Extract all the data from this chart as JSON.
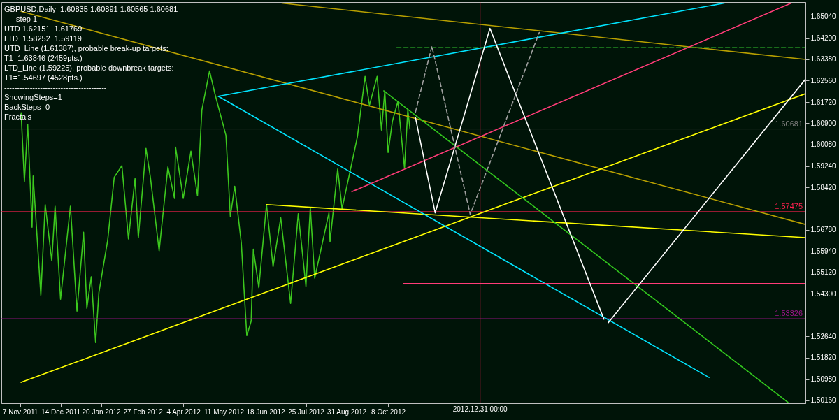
{
  "chart_data": {
    "type": "line",
    "title": "GBPUSD,Daily  1.60835 1.60891 1.60565 1.60681",
    "annotations": [
      "---  step 1  ---------------------",
      "UTD 1.62151  1.61769",
      "LTD  1.58252  1.59119",
      "UTD_Line (1.61387), probable break-up targets:",
      "T1=1.63846 (2459pts.)",
      "LTD_Line (1.59225), probable downbreak targets:",
      "T1=1.54697 (4528pts.)",
      "----------------------------------------",
      "ShowingSteps=1",
      "BackSteps=0",
      "Fractals"
    ],
    "xlim": [
      "2011-10-21",
      "2013-10-24"
    ],
    "xticks": [
      {
        "value": "2011-11-07",
        "label": "7 Nov 2011"
      },
      {
        "value": "2011-12-14",
        "label": "14 Dec 2011"
      },
      {
        "value": "2012-01-20",
        "label": "20 Jan 2012"
      },
      {
        "value": "2012-02-27",
        "label": "27 Feb 2012"
      },
      {
        "value": "2012-04-04",
        "label": "4 Apr 2012"
      },
      {
        "value": "2012-05-11",
        "label": "11 May 2012"
      },
      {
        "value": "2012-06-18",
        "label": "18 Jun 2012"
      },
      {
        "value": "2012-07-25",
        "label": "25 Jul 2012"
      },
      {
        "value": "2012-08-31",
        "label": "31 Aug 2012"
      },
      {
        "value": "2012-10-08",
        "label": "8 Oct 2012"
      }
    ],
    "ylim": [
      1.5005,
      1.656
    ],
    "yticks": [
      {
        "value": 1.6504,
        "label": "1.65040"
      },
      {
        "value": 1.642,
        "label": "1.64200"
      },
      {
        "value": 1.6338,
        "label": "1.63380"
      },
      {
        "value": 1.6256,
        "label": "1.62560"
      },
      {
        "value": 1.6172,
        "label": "1.61720"
      },
      {
        "value": 1.609,
        "label": "1.60900"
      },
      {
        "value": 1.6008,
        "label": "1.60080"
      },
      {
        "value": 1.5924,
        "label": "1.59240"
      },
      {
        "value": 1.5842,
        "label": "1.58420"
      },
      {
        "value": 1.5678,
        "label": "1.56780"
      },
      {
        "value": 1.5594,
        "label": "1.55940"
      },
      {
        "value": 1.5512,
        "label": "1.55120"
      },
      {
        "value": 1.543,
        "label": "1.54300"
      },
      {
        "value": 1.5264,
        "label": "1.52640"
      },
      {
        "value": 1.5182,
        "label": "1.51820"
      },
      {
        "value": 1.5098,
        "label": "1.50980"
      },
      {
        "value": 1.5016,
        "label": "1.50160"
      }
    ],
    "line_style": "solid",
    "series": [
      {
        "color": "#3cc81e",
        "x": [
          "2011-11-08",
          "2011-11-11",
          "2011-11-14",
          "2011-11-18",
          "2011-11-19",
          "2011-11-26",
          "2011-11-30",
          "2011-12-06",
          "2011-12-09",
          "2011-12-14",
          "2011-12-23",
          "2011-12-29",
          "2012-01-04",
          "2012-01-07",
          "2012-01-11",
          "2012-01-15",
          "2012-01-18",
          "2012-01-26",
          "2012-02-01",
          "2012-02-08",
          "2012-02-14",
          "2012-02-20",
          "2012-02-23",
          "2012-03-01",
          "2012-03-05",
          "2012-03-13",
          "2012-03-21",
          "2012-03-27",
          "2012-03-28",
          "2012-04-04",
          "2012-04-11",
          "2012-04-17",
          "2012-04-21",
          "2012-04-28",
          "2012-05-03",
          "2012-05-13",
          "2012-05-17",
          "2012-05-21",
          "2012-05-27",
          "2012-06-01",
          "2012-06-05",
          "2012-06-07",
          "2012-06-12",
          "2012-06-19",
          "2012-06-25",
          "2012-07-02",
          "2012-07-11",
          "2012-07-18",
          "2012-07-25",
          "2012-07-29",
          "2012-08-02",
          "2012-08-15",
          "2012-08-16",
          "2012-08-23",
          "2012-08-27",
          "2012-09-10",
          "2012-09-17",
          "2012-09-21",
          "2012-09-28",
          "2012-10-02",
          "2012-10-05",
          "2012-10-08",
          "2012-10-12",
          "2012-10-17",
          "2012-10-23",
          "2012-10-26",
          "2012-10-28"
        ],
        "values": [
          1.6131,
          1.5865,
          1.6086,
          1.5687,
          1.5886,
          1.5424,
          1.5775,
          1.5557,
          1.5769,
          1.5408,
          1.5769,
          1.5362,
          1.5668,
          1.5373,
          1.5495,
          1.524,
          1.5434,
          1.5636,
          1.5881,
          1.5926,
          1.5642,
          1.5876,
          1.5647,
          1.5993,
          1.5881,
          1.5596,
          1.5921,
          1.5799,
          1.5998,
          1.5799,
          1.5982,
          1.5809,
          1.6142,
          1.6293,
          1.6203,
          1.6043,
          1.5729,
          1.5846,
          1.5626,
          1.5267,
          1.5323,
          1.5602,
          1.5453,
          1.5775,
          1.5535,
          1.5724,
          1.5392,
          1.574,
          1.5458,
          1.5764,
          1.549,
          1.5743,
          1.5631,
          1.5913,
          1.5759,
          1.6038,
          1.6272,
          1.616,
          1.6272,
          1.6064,
          1.6216,
          1.5977,
          1.6099,
          1.6176,
          1.5916,
          1.6142,
          1.6068
        ]
      },
      {
        "color": "#b8a000",
        "x": [
          "2012-07-03",
          "2013-10-24"
        ],
        "values": [
          1.6556,
          1.6338
        ]
      },
      {
        "color": "#b8a000",
        "x": [
          "2011-11-08",
          "2013-10-24"
        ],
        "values": [
          1.6524,
          1.5698
        ]
      },
      {
        "color": "#ffff00",
        "x": [
          "2011-11-08",
          "2013-10-24"
        ],
        "values": [
          1.5086,
          1.6205
        ]
      },
      {
        "color": "#ffff00",
        "x": [
          "2012-06-19",
          "2013-10-24"
        ],
        "values": [
          1.5775,
          1.5647
        ]
      },
      {
        "color": "#00e5ff",
        "x": [
          "2012-05-06",
          "2013-08-11"
        ],
        "values": [
          1.6195,
          1.6556
        ]
      },
      {
        "color": "#00e5ff",
        "x": [
          "2012-05-06",
          "2013-07-28"
        ],
        "values": [
          1.6195,
          1.5105
        ]
      },
      {
        "color": "#32c81e",
        "x": [
          "2012-10-04",
          "2013-10-08"
        ],
        "values": [
          1.6216,
          1.5009
        ]
      },
      {
        "color": "#228b22",
        "line_style": "dashed",
        "x": [
          "2012-10-16",
          "2013-10-24"
        ],
        "values": [
          1.6384,
          1.6384
        ]
      },
      {
        "color": "#ff3c78",
        "x": [
          "2012-09-05",
          "2013-10-11"
        ],
        "values": [
          1.5825,
          1.6556
        ]
      },
      {
        "color": "#ff3c78",
        "x": [
          "2012-10-22",
          "2013-10-24"
        ],
        "values": [
          1.5469,
          1.5469
        ]
      },
      {
        "color": "#ffffff",
        "x": [
          "2012-11-02",
          "2012-11-20",
          "2013-01-09",
          "2013-04-23"
        ],
        "values": [
          1.6112,
          1.5743,
          1.6458,
          1.5331
        ]
      },
      {
        "color": "#ffffff",
        "x": [
          "2013-04-27",
          "2013-10-24"
        ],
        "values": [
          1.5317,
          1.6261
        ]
      },
      {
        "color": "#a0a0a0",
        "line_style": "dashed",
        "x": [
          "2012-11-02",
          "2012-11-17",
          "2012-12-22",
          "2013-02-23"
        ],
        "values": [
          1.6134,
          1.6389,
          1.5737,
          1.6442
        ]
      }
    ],
    "ref_lines": [
      {
        "axis": "y",
        "value": 1.60681,
        "label": "1.60681",
        "color": "#808080"
      },
      {
        "axis": "y",
        "value": 1.57475,
        "label": "1.57475",
        "color": "#ff2050"
      },
      {
        "axis": "y",
        "value": 1.53326,
        "label": "1.53326",
        "color": "#a0148c"
      },
      {
        "axis": "x",
        "value": "2012-12-31",
        "label": "2012.12.31 00:00",
        "color": "#ff2050"
      }
    ]
  }
}
